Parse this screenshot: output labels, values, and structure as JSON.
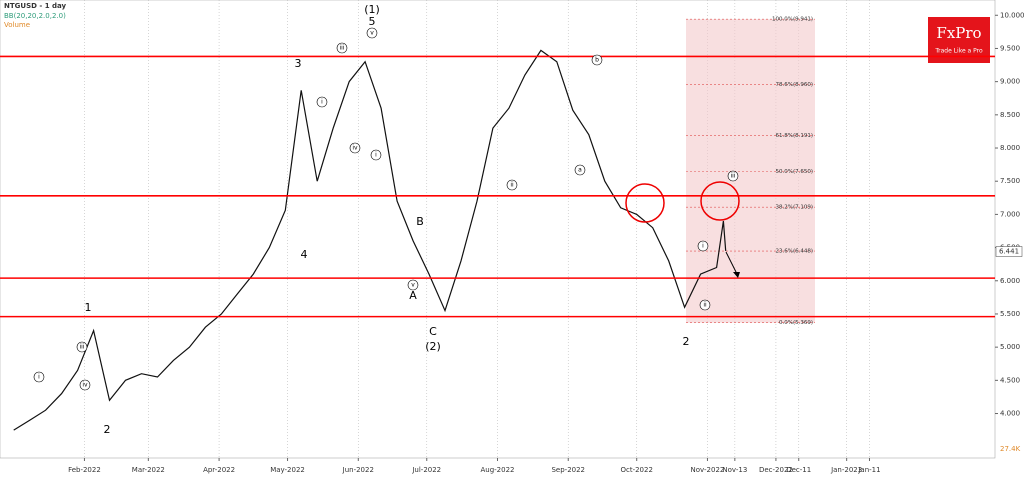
{
  "chart_data": {
    "type": "line",
    "title": "NTGUSD - 1 day",
    "indicator": "BB(20,20,2.0,2.0)",
    "volume_label": "Volume",
    "volume_value": "27.4K",
    "brand": "FxPro",
    "brand_tagline": "Trade Like a Pro",
    "last_price": {
      "value": 6.441,
      "label": "6.441"
    },
    "x": [
      0,
      7,
      14,
      21,
      28,
      35,
      42,
      49,
      56,
      63,
      70,
      77,
      84,
      91,
      98,
      105,
      112,
      119,
      126,
      133,
      140,
      147,
      154,
      161,
      168,
      175,
      182,
      189,
      196,
      203,
      210,
      217,
      224,
      231,
      238,
      245,
      252,
      259,
      266,
      273,
      280,
      287,
      294,
      301,
      308,
      311,
      312
    ],
    "series": [
      {
        "name": "NTGUSD",
        "color": "#111111",
        "values": [
          3.75,
          3.9,
          4.05,
          4.3,
          4.65,
          5.25,
          4.2,
          4.5,
          4.6,
          4.55,
          4.8,
          5.0,
          5.3,
          5.5,
          5.8,
          6.1,
          6.5,
          7.06,
          8.87,
          7.5,
          8.3,
          9.0,
          9.3,
          8.6,
          7.2,
          6.6,
          6.1,
          5.55,
          6.3,
          7.2,
          8.3,
          8.6,
          9.1,
          9.47,
          9.3,
          8.57,
          8.2,
          7.5,
          7.1,
          7.0,
          6.8,
          6.3,
          5.6,
          6.1,
          6.2,
          6.9,
          6.45
        ]
      }
    ],
    "xlim": [
      -6,
      430
    ],
    "xticks": [
      {
        "value": 31,
        "label": "Feb-2022"
      },
      {
        "value": 59,
        "label": "Mar-2022"
      },
      {
        "value": 90,
        "label": "Apr-2022"
      },
      {
        "value": 120,
        "label": "May-2022"
      },
      {
        "value": 151,
        "label": "Jun-2022"
      },
      {
        "value": 181,
        "label": "Jul-2022"
      },
      {
        "value": 212,
        "label": "Aug-2022"
      },
      {
        "value": 243,
        "label": "Sep-2022"
      },
      {
        "value": 273,
        "label": "Oct-2022"
      },
      {
        "value": 304,
        "label": "Nov-2022"
      },
      {
        "value": 316,
        "label": "Nov-13"
      },
      {
        "value": 334,
        "label": "Dec-2022"
      },
      {
        "value": 344,
        "label": "Dec-11"
      },
      {
        "value": 365,
        "label": "Jan-2023"
      },
      {
        "value": 375,
        "label": "Jan-11"
      }
    ],
    "ylim": [
      3.33,
      10.23
    ],
    "yticks": [
      {
        "value": 4,
        "label": "4.000"
      },
      {
        "value": 4.5,
        "label": "4.500"
      },
      {
        "value": 5,
        "label": "5.000"
      },
      {
        "value": 5.5,
        "label": "5.500"
      },
      {
        "value": 6,
        "label": "6.000"
      },
      {
        "value": 6.5,
        "label": "6.500"
      },
      {
        "value": 7,
        "label": "7.000"
      },
      {
        "value": 7.5,
        "label": "7.500"
      },
      {
        "value": 8,
        "label": "8.000"
      },
      {
        "value": 8.5,
        "label": "8.500"
      },
      {
        "value": 9,
        "label": "9.000"
      },
      {
        "value": 9.5,
        "label": "9.500"
      },
      {
        "value": 10,
        "label": "10.000"
      }
    ],
    "grid": true,
    "levels": [
      9.38,
      7.28,
      6.04,
      5.46
    ],
    "level_color": "#ff0000",
    "fib_levels": [
      {
        "value": 9.941,
        "label": "100.0%(9.941)"
      },
      {
        "value": 8.96,
        "label": "78.6%(8.960)"
      },
      {
        "value": 8.191,
        "label": "61.8%(8.191)"
      },
      {
        "value": 7.65,
        "label": "50.0%(7.650)"
      },
      {
        "value": 7.109,
        "label": "38.2%(7.109)"
      },
      {
        "value": 6.448,
        "label": "23.6%(6.448)"
      },
      {
        "value": 5.369,
        "label": "0.0%(5.369)"
      }
    ],
    "waves": [
      "1",
      "2",
      "3",
      "4",
      "(1)",
      "5",
      "B",
      "A",
      "C",
      "(2)",
      "2"
    ],
    "sub_waves": [
      "i",
      "iii",
      "iv",
      "i",
      "iii",
      "iv",
      "v",
      "i",
      "ii",
      "v",
      "b",
      "a",
      "iii",
      "i",
      "ii"
    ]
  }
}
